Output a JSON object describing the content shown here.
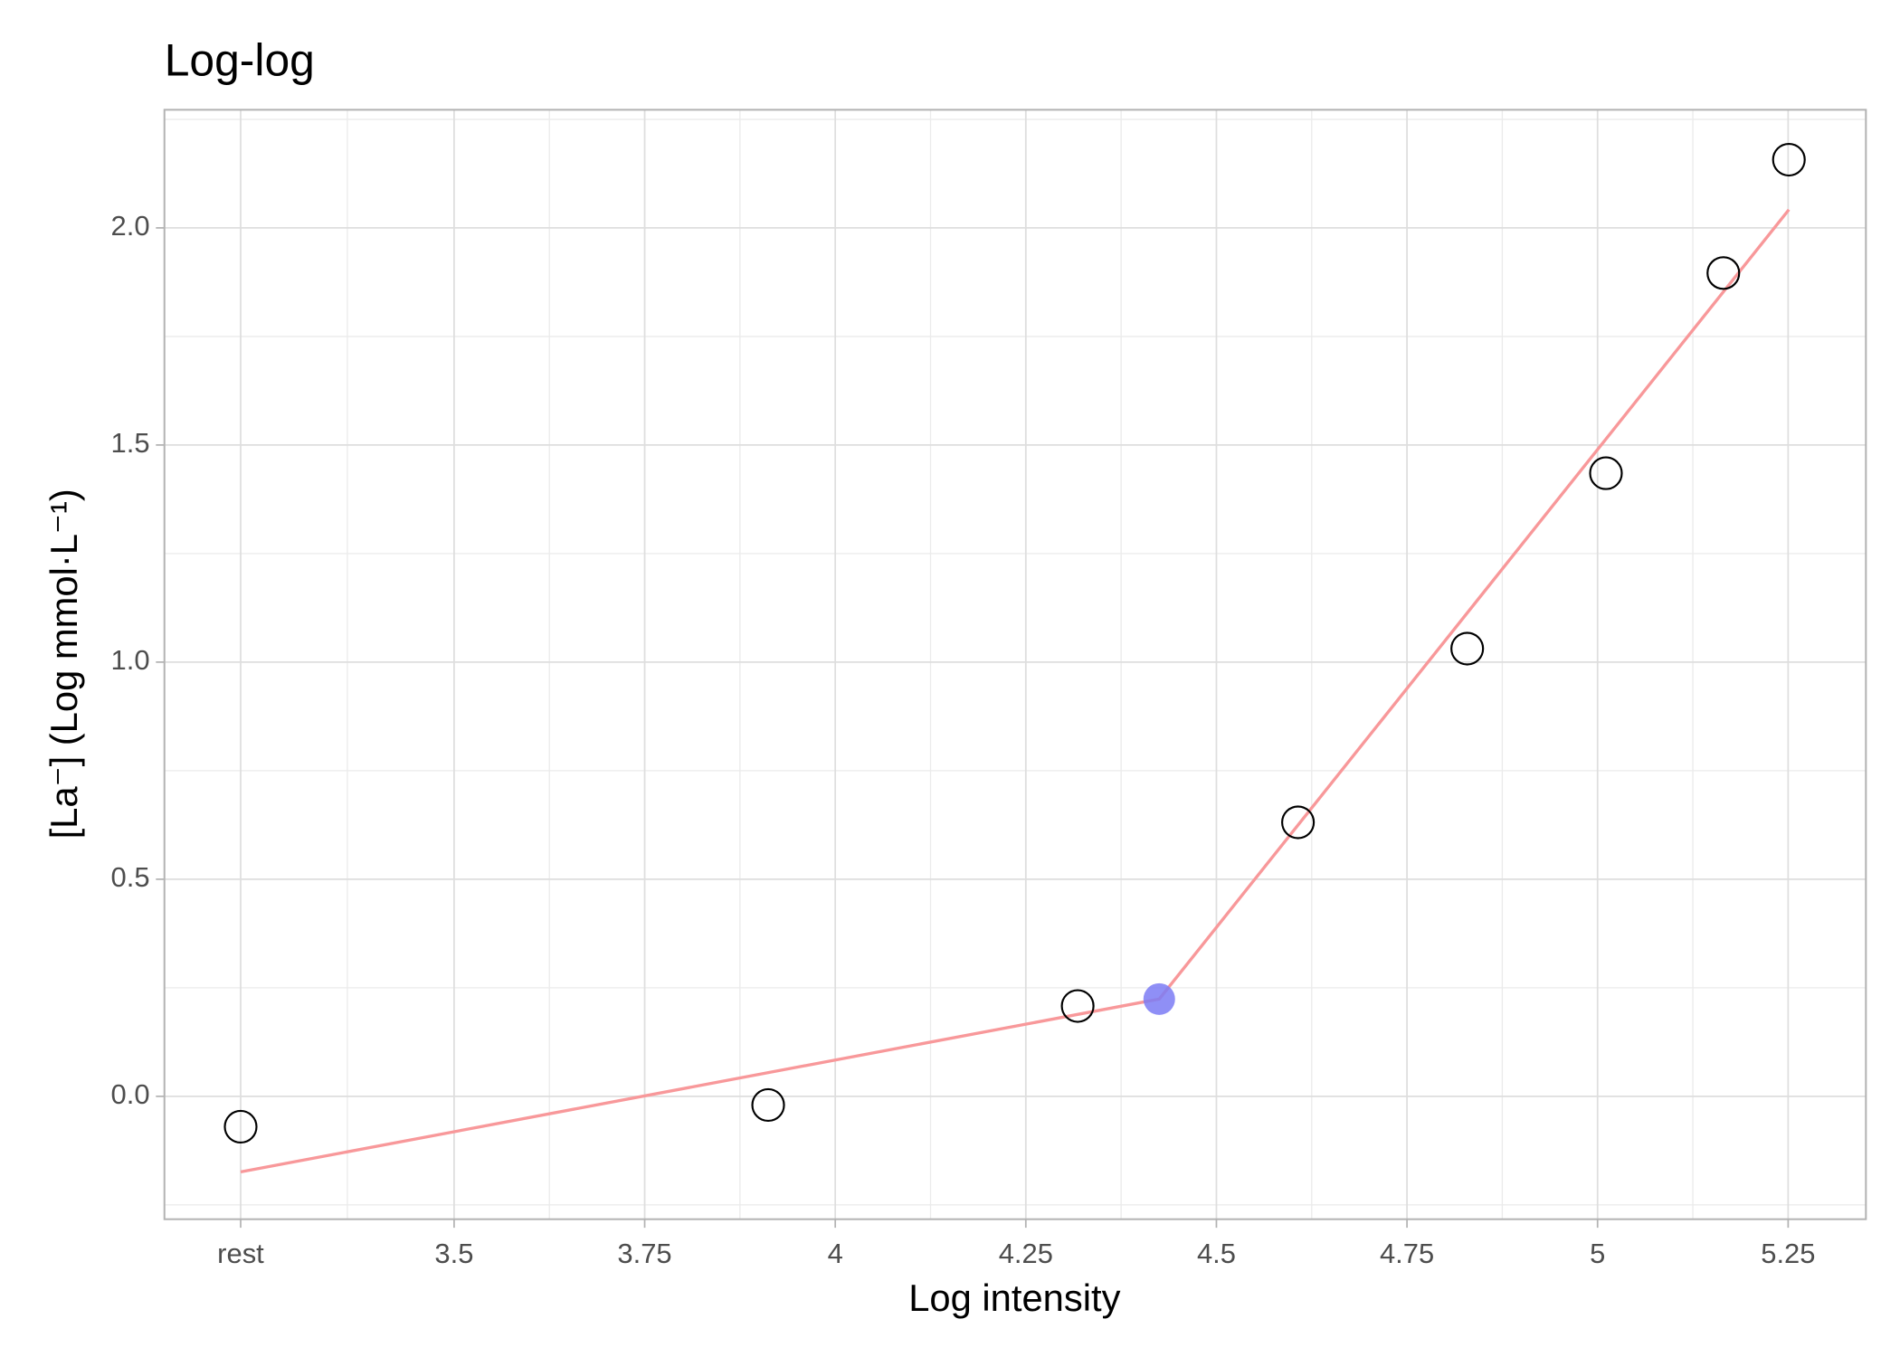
{
  "chart_data": {
    "type": "scatter",
    "title": "Log-log",
    "x_label": "Log intensity",
    "y_label": "[La⁻] (Log mmol·L⁻¹)",
    "xlim": [
      3.12,
      5.352
    ],
    "ylim": [
      -0.283,
      2.272
    ],
    "xticks": [
      {
        "value": 3.22,
        "label": "rest"
      },
      3.5,
      3.75,
      4,
      4.25,
      4.5,
      4.75,
      5,
      5.25
    ],
    "yticks": [
      {
        "value": 0,
        "label": "0.0"
      },
      0.5,
      {
        "value": 1,
        "label": "1.0"
      },
      1.5,
      {
        "value": 2,
        "label": "2.0"
      }
    ],
    "x_minor_ticks": [
      3.36,
      3.625,
      3.875,
      4.125,
      4.375,
      4.625,
      4.875,
      5.125
    ],
    "y_minor_ticks": [
      -0.25,
      0.25,
      0.75,
      1.25,
      1.75,
      2.25
    ],
    "grid": true,
    "points": {
      "color": "#000000",
      "x": [
        3.22,
        3.912,
        4.318,
        4.607,
        4.829,
        5.011,
        5.165,
        5.251
      ],
      "y": [
        -0.07,
        -0.02,
        0.208,
        0.631,
        1.031,
        1.435,
        1.896,
        2.157
      ]
    },
    "fit": {
      "color": "#f8989a",
      "x": [
        3.22,
        4.425,
        5.251
      ],
      "y": [
        -0.174,
        0.224,
        2.042
      ]
    },
    "breakpoint": {
      "color": "#7b7bf5",
      "x": 4.425,
      "y": 0.224
    }
  }
}
